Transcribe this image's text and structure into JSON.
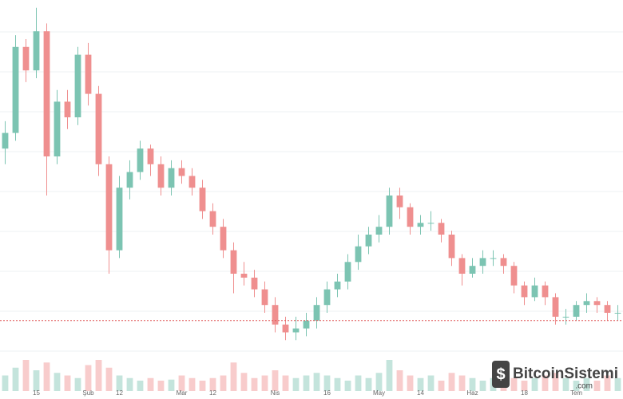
{
  "chart_data": {
    "type": "candlestick",
    "categories": [
      null,
      null,
      null,
      "15",
      null,
      null,
      null,
      null,
      "Şub",
      null,
      null,
      "12",
      null,
      null,
      null,
      null,
      null,
      "Mar",
      null,
      null,
      "12",
      null,
      null,
      null,
      null,
      null,
      "Nis",
      null,
      null,
      null,
      null,
      "16",
      null,
      null,
      null,
      null,
      "May",
      null,
      null,
      null,
      "14",
      null,
      null,
      null,
      null,
      "Haz",
      null,
      null,
      null,
      null,
      "18",
      null,
      null,
      null,
      null,
      "Tem",
      null,
      null,
      null,
      null
    ],
    "open": [
      62,
      66,
      88,
      82,
      92,
      60,
      74,
      70,
      86,
      76,
      58,
      36,
      52,
      56,
      62,
      58,
      52,
      57,
      55,
      52,
      46,
      42,
      36,
      30,
      29,
      26,
      22,
      17,
      15,
      16,
      18,
      22,
      26,
      28,
      33,
      37,
      40,
      42,
      50,
      47,
      42,
      43,
      43,
      40,
      34,
      30,
      32,
      34,
      34,
      32,
      27,
      24,
      27,
      24,
      19,
      19,
      22,
      23,
      22,
      20
    ],
    "high": [
      69,
      91,
      90,
      98,
      94,
      77,
      77,
      88,
      89,
      78,
      60,
      55,
      59,
      64,
      63,
      60,
      59,
      59,
      57,
      54,
      48,
      44,
      38,
      33,
      31,
      28,
      24,
      19,
      19,
      20,
      24,
      28,
      30,
      35,
      40,
      42,
      45,
      52,
      52,
      48,
      45,
      46,
      44,
      41,
      35,
      34,
      36,
      36,
      35,
      33,
      28,
      29,
      28,
      25,
      21,
      23,
      25,
      24,
      23,
      22
    ],
    "low": [
      58,
      64,
      79,
      80,
      50,
      58,
      67,
      68,
      73,
      55,
      30,
      34,
      49,
      54,
      55,
      50,
      50,
      53,
      50,
      44,
      40,
      34,
      25,
      27,
      24,
      20,
      15,
      13,
      13,
      14,
      16,
      20,
      24,
      26,
      31,
      35,
      38,
      40,
      44,
      40,
      40,
      41,
      38,
      32,
      27,
      29,
      30,
      32,
      30,
      25,
      22,
      23,
      22,
      17,
      17,
      18,
      20,
      20,
      18,
      18
    ],
    "close": [
      66,
      88,
      82,
      92,
      60,
      74,
      70,
      86,
      76,
      58,
      36,
      52,
      56,
      62,
      58,
      52,
      57,
      55,
      52,
      46,
      42,
      36,
      30,
      29,
      26,
      22,
      17,
      15,
      16,
      18,
      22,
      26,
      28,
      33,
      37,
      40,
      42,
      50,
      47,
      42,
      43,
      43,
      40,
      34,
      30,
      32,
      34,
      34,
      32,
      27,
      24,
      27,
      24,
      19,
      19,
      22,
      23,
      22,
      20,
      20
    ],
    "volume": [
      30,
      45,
      60,
      40,
      55,
      35,
      30,
      25,
      50,
      60,
      45,
      30,
      25,
      20,
      25,
      20,
      22,
      30,
      25,
      20,
      25,
      30,
      55,
      35,
      25,
      30,
      40,
      30,
      25,
      30,
      35,
      30,
      25,
      20,
      30,
      25,
      35,
      60,
      40,
      30,
      25,
      30,
      20,
      35,
      30,
      25,
      20,
      25,
      30,
      25,
      20,
      25,
      30,
      35,
      25,
      20,
      25,
      20,
      30,
      25
    ],
    "up_color": "#7cc4b2",
    "down_color": "#ef8f8f",
    "ylim": [
      0,
      100
    ],
    "vlim": [
      0,
      100
    ],
    "price_line": 18,
    "price_line_color": "#e05a5a",
    "grid": true,
    "watermark": {
      "name": "BitcoinSistemi",
      "suffix": ".com"
    }
  }
}
